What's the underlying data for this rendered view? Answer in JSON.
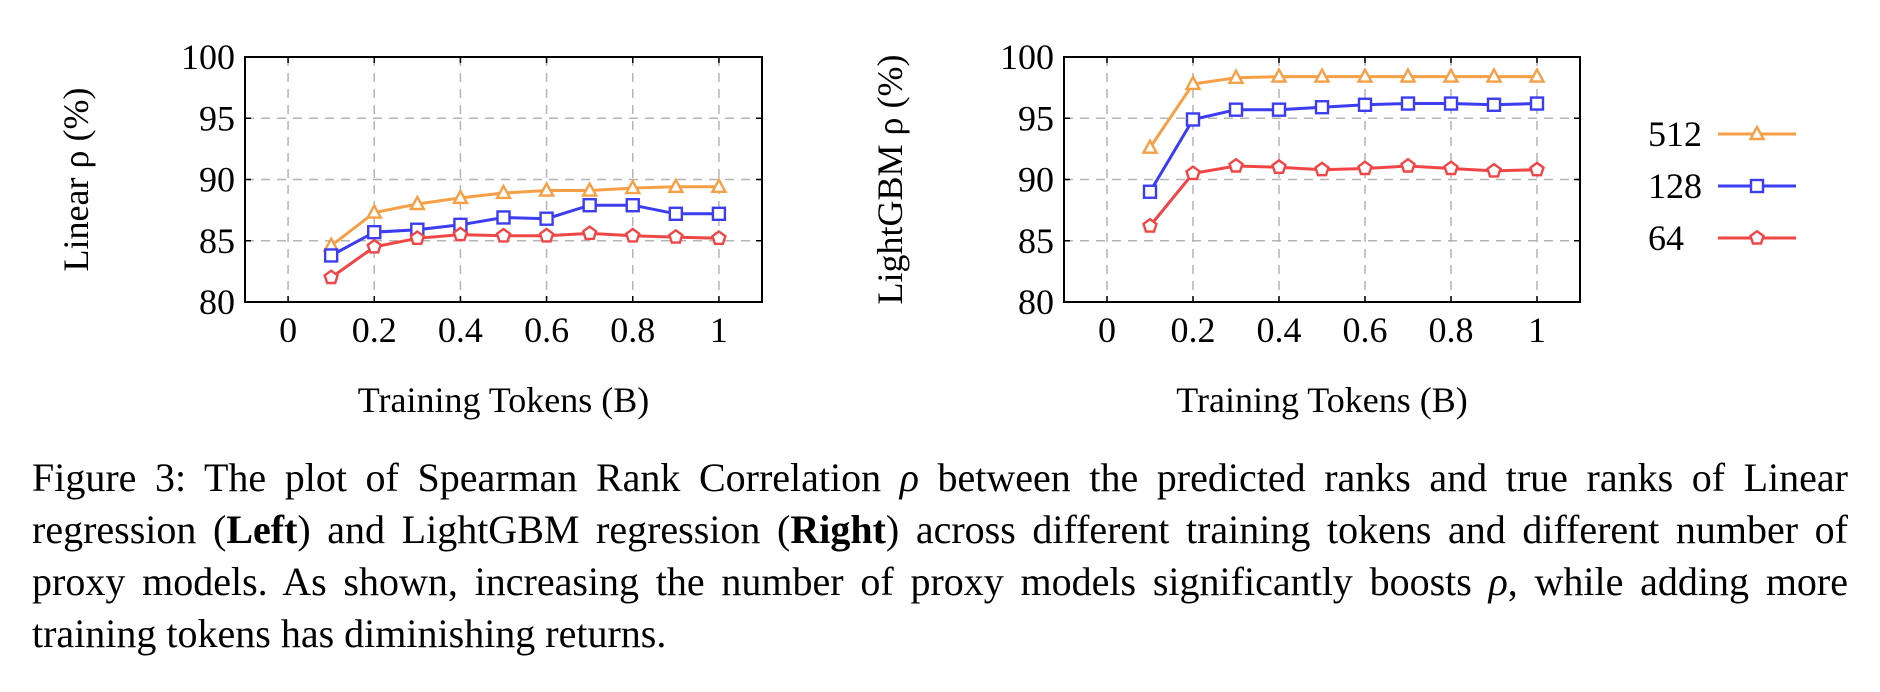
{
  "colors": {
    "s512": "#f5a046",
    "s128": "#3c3cf0",
    "s64": "#f04646",
    "grid": "#b4b4b4"
  },
  "legend": {
    "position": "right",
    "entries": [
      {
        "label": "512",
        "color": "#f5a046",
        "marker": "triangle"
      },
      {
        "label": "128",
        "color": "#3c3cf0",
        "marker": "square"
      },
      {
        "label": "64",
        "color": "#f04646",
        "marker": "pentagon"
      }
    ]
  },
  "chart_data": [
    {
      "type": "line",
      "xlabel": "Training Tokens (B)",
      "ylabel": "Linear ρ (%)",
      "xlim": [
        -0.1,
        1.1
      ],
      "ylim": [
        80,
        100
      ],
      "xticks": [
        "0",
        "0.2",
        "0.4",
        "0.6",
        "0.8",
        "1"
      ],
      "yticks": [
        "80",
        "85",
        "90",
        "95",
        "100"
      ],
      "grid": true,
      "x": [
        0.1,
        0.2,
        0.3,
        0.4,
        0.5,
        0.6,
        0.7,
        0.8,
        0.9,
        1.0
      ],
      "series": [
        {
          "name": "512",
          "values": [
            84.6,
            87.3,
            88.0,
            88.5,
            88.9,
            89.1,
            89.1,
            89.3,
            89.4,
            89.4
          ]
        },
        {
          "name": "128",
          "values": [
            83.8,
            85.7,
            85.9,
            86.3,
            86.9,
            86.8,
            87.9,
            87.9,
            87.2,
            87.2
          ]
        },
        {
          "name": "64",
          "values": [
            82.0,
            84.5,
            85.2,
            85.5,
            85.4,
            85.4,
            85.6,
            85.4,
            85.3,
            85.2
          ]
        }
      ]
    },
    {
      "type": "line",
      "xlabel": "Training Tokens (B)",
      "ylabel": "LightGBM ρ (%)",
      "xlim": [
        -0.1,
        1.1
      ],
      "ylim": [
        80,
        100
      ],
      "xticks": [
        "0",
        "0.2",
        "0.4",
        "0.6",
        "0.8",
        "1"
      ],
      "yticks": [
        "80",
        "85",
        "90",
        "95",
        "100"
      ],
      "grid": true,
      "x": [
        0.1,
        0.2,
        0.3,
        0.4,
        0.5,
        0.6,
        0.7,
        0.8,
        0.9,
        1.0
      ],
      "series": [
        {
          "name": "512",
          "values": [
            92.6,
            97.8,
            98.3,
            98.4,
            98.4,
            98.4,
            98.4,
            98.4,
            98.4,
            98.4
          ]
        },
        {
          "name": "128",
          "values": [
            89.0,
            94.9,
            95.7,
            95.7,
            95.9,
            96.1,
            96.2,
            96.2,
            96.1,
            96.2
          ]
        },
        {
          "name": "64",
          "values": [
            86.2,
            90.5,
            91.1,
            91.0,
            90.8,
            90.9,
            91.1,
            90.9,
            90.7,
            90.8
          ]
        }
      ]
    }
  ],
  "caption": {
    "figure_label": "Figure 3:",
    "text_1": " The plot of Spearman Rank Correlation ",
    "rho_1": "ρ",
    "text_2": " between the predicted ranks and true ranks of Linear regression (",
    "bold_left": "Left",
    "text_3": ") and LightGBM regression (",
    "bold_right": "Right",
    "text_4": ") across different training tokens and different number of proxy models. As shown, increasing the number of proxy models significantly boosts ",
    "rho_2": "ρ",
    "text_5": ", while adding more training tokens has diminishing returns."
  }
}
